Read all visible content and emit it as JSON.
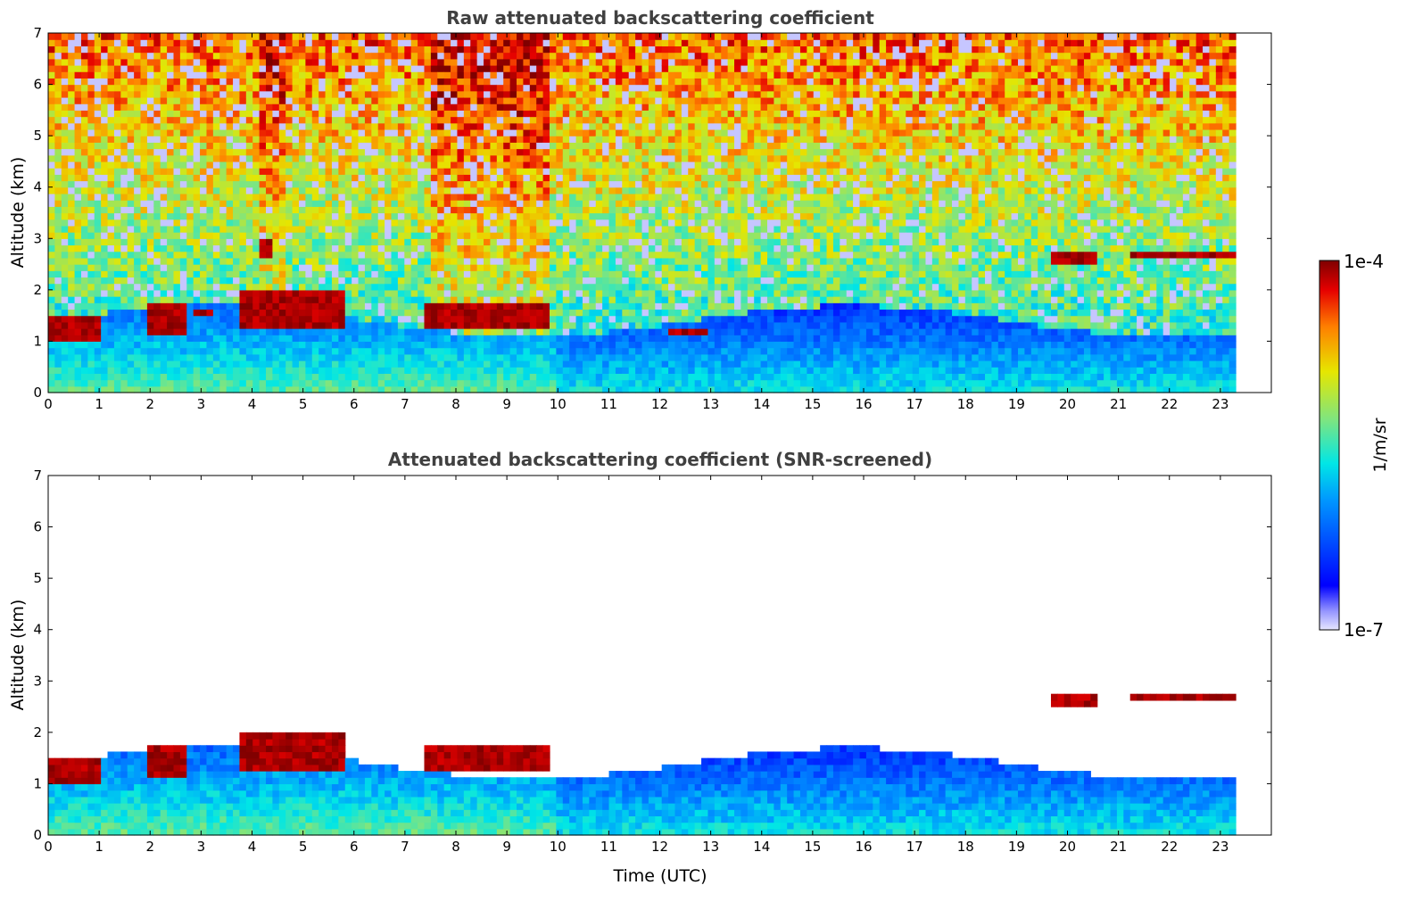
{
  "chart_data": [
    {
      "type": "heatmap",
      "title": "Raw attenuated backscattering coefficient",
      "xlabel": "",
      "ylabel": "Altitude (km)",
      "xlim": [
        0,
        24
      ],
      "ylim": [
        0,
        7
      ],
      "x_ticks": [
        0,
        1,
        2,
        3,
        4,
        5,
        6,
        7,
        8,
        9,
        10,
        11,
        12,
        13,
        14,
        15,
        16,
        17,
        18,
        19,
        20,
        21,
        22,
        23
      ],
      "y_ticks": [
        0,
        1,
        2,
        3,
        4,
        5,
        6,
        7
      ],
      "data_extent_x": [
        0,
        23.3
      ],
      "noise_screened": false,
      "features": [
        {
          "kind": "cloud",
          "x": [
            0.0,
            1.0
          ],
          "alt": [
            1.05,
            1.55
          ]
        },
        {
          "kind": "cloud",
          "x": [
            1.9,
            2.7
          ],
          "alt": [
            1.1,
            1.8
          ]
        },
        {
          "kind": "cloud",
          "x": [
            2.9,
            3.2
          ],
          "alt": [
            1.5,
            1.6
          ]
        },
        {
          "kind": "cloud",
          "x": [
            3.8,
            5.8
          ],
          "alt": [
            1.2,
            2.0
          ]
        },
        {
          "kind": "cloud",
          "x": [
            4.2,
            4.4
          ],
          "alt": [
            2.6,
            3.0
          ]
        },
        {
          "kind": "cloud",
          "x": [
            7.4,
            9.9
          ],
          "alt": [
            1.3,
            1.7
          ]
        },
        {
          "kind": "cloud",
          "x": [
            12.2,
            13.0
          ],
          "alt": [
            1.15,
            1.3
          ]
        },
        {
          "kind": "cloud",
          "x": [
            19.7,
            20.6
          ],
          "alt": [
            2.45,
            2.75
          ]
        },
        {
          "kind": "cloud",
          "x": [
            21.2,
            23.3
          ],
          "alt": [
            2.6,
            2.8
          ]
        }
      ]
    },
    {
      "type": "heatmap",
      "title": "Attenuated backscattering coefficient (SNR-screened)",
      "xlabel": "Time (UTC)",
      "ylabel": "Altitude (km)",
      "xlim": [
        0,
        24
      ],
      "ylim": [
        0,
        7
      ],
      "x_ticks": [
        0,
        1,
        2,
        3,
        4,
        5,
        6,
        7,
        8,
        9,
        10,
        11,
        12,
        13,
        14,
        15,
        16,
        17,
        18,
        19,
        20,
        21,
        22,
        23
      ],
      "y_ticks": [
        0,
        1,
        2,
        3,
        4,
        5,
        6,
        7
      ],
      "data_extent_x": [
        0,
        23.3
      ],
      "noise_screened": true,
      "features": [
        {
          "kind": "cloud",
          "x": [
            0.0,
            1.0
          ],
          "alt": [
            1.05,
            1.55
          ]
        },
        {
          "kind": "cloud",
          "x": [
            1.9,
            2.7
          ],
          "alt": [
            1.1,
            1.8
          ]
        },
        {
          "kind": "cloud",
          "x": [
            3.8,
            5.8
          ],
          "alt": [
            1.2,
            2.0
          ]
        },
        {
          "kind": "cloud",
          "x": [
            7.4,
            9.9
          ],
          "alt": [
            1.3,
            1.7
          ]
        },
        {
          "kind": "cloud",
          "x": [
            19.7,
            20.6
          ],
          "alt": [
            2.45,
            2.75
          ]
        },
        {
          "kind": "cloud",
          "x": [
            21.2,
            23.3
          ],
          "alt": [
            2.6,
            2.8
          ]
        }
      ]
    }
  ],
  "colorbar": {
    "label": "1/m/sr",
    "min_label": "1e-7",
    "max_label": "1e-4",
    "scale": "log",
    "range": [
      1e-07,
      0.0001
    ],
    "colormap": "jet",
    "colors": [
      "#e6e6ff",
      "#0000ff",
      "#0096ff",
      "#00e6e6",
      "#7fe57f",
      "#e6e600",
      "#ff8000",
      "#e60000",
      "#7f0000"
    ]
  }
}
